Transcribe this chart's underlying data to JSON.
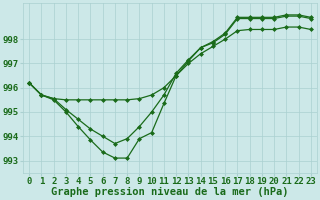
{
  "xlabel": "Graphe pression niveau de la mer (hPa)",
  "background_color": "#cce8e8",
  "grid_color": "#aad0d0",
  "line_color": "#1a6b1a",
  "marker_color": "#1a6b1a",
  "x_values": [
    0,
    1,
    2,
    3,
    4,
    5,
    6,
    7,
    8,
    9,
    10,
    11,
    12,
    13,
    14,
    15,
    16,
    17,
    18,
    19,
    20,
    21,
    22,
    23
  ],
  "series1": [
    996.2,
    995.7,
    995.5,
    995.0,
    994.4,
    993.85,
    993.35,
    993.1,
    993.1,
    993.9,
    994.15,
    995.35,
    996.5,
    997.1,
    997.65,
    997.85,
    998.2,
    998.85,
    998.85,
    998.85,
    998.85,
    998.95,
    998.95,
    998.85
  ],
  "series2": [
    996.2,
    995.7,
    995.55,
    995.5,
    995.5,
    995.5,
    995.5,
    995.5,
    995.5,
    995.55,
    995.7,
    996.0,
    996.5,
    997.0,
    997.4,
    997.7,
    998.0,
    998.35,
    998.4,
    998.4,
    998.4,
    998.5,
    998.5,
    998.4
  ],
  "series3": [
    996.2,
    995.7,
    995.55,
    995.1,
    994.7,
    994.3,
    994.0,
    993.7,
    993.9,
    994.4,
    995.0,
    995.7,
    996.6,
    997.15,
    997.65,
    997.9,
    998.25,
    998.9,
    998.9,
    998.9,
    998.9,
    999.0,
    999.0,
    998.9
  ],
  "ylim": [
    992.5,
    999.5
  ],
  "yticks": [
    993,
    994,
    995,
    996,
    997,
    998
  ],
  "text_color": "#1a6b1a",
  "tick_fontsize": 6.5,
  "label_fontsize": 7.5
}
